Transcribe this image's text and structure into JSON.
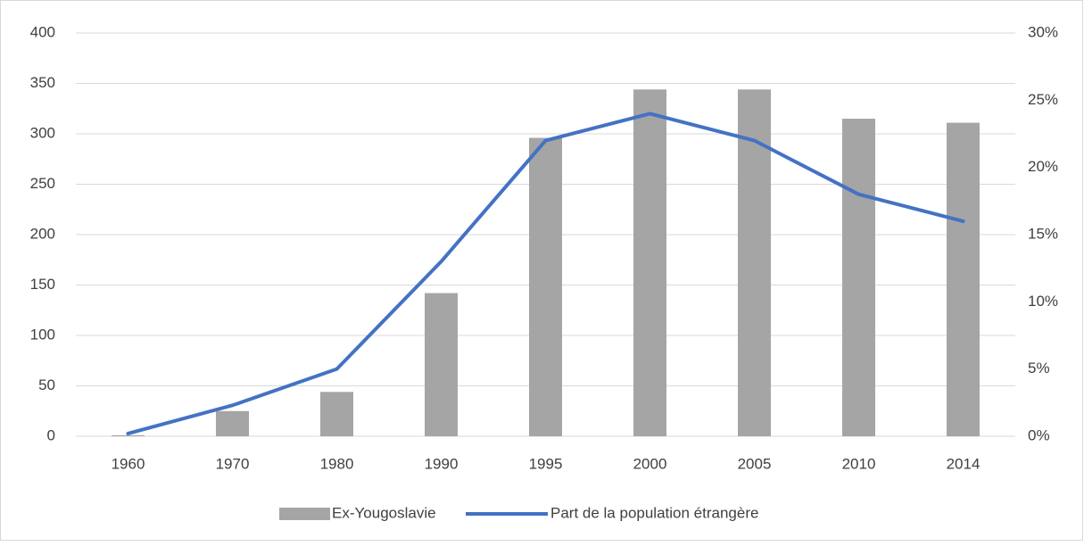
{
  "chart_data": {
    "type": "bar_line",
    "categories": [
      "1960",
      "1970",
      "1980",
      "1990",
      "1995",
      "2000",
      "2005",
      "2010",
      "2014"
    ],
    "series": [
      {
        "name": "Ex-Yougoslavie",
        "type": "bar",
        "color": "#a5a5a5",
        "values": [
          1,
          25,
          44,
          142,
          296,
          344,
          344,
          315,
          311
        ]
      },
      {
        "name": "Part de la population étrangère",
        "type": "line",
        "color": "#4472c4",
        "axis": "y2",
        "values": [
          0.2,
          2.3,
          5,
          13,
          22,
          24,
          22,
          18,
          16
        ]
      }
    ],
    "ylim": [
      0,
      400
    ],
    "yticks": [
      0,
      50,
      100,
      150,
      200,
      250,
      300,
      350,
      400
    ],
    "y2lim": [
      0,
      30
    ],
    "y2ticks": [
      {
        "value": 0,
        "label": "0%"
      },
      {
        "value": 5,
        "label": "5%"
      },
      {
        "value": 10,
        "label": "10%"
      },
      {
        "value": 15,
        "label": "15%"
      },
      {
        "value": 20,
        "label": "20%"
      },
      {
        "value": 25,
        "label": "25%"
      },
      {
        "value": 30,
        "label": "30%"
      }
    ],
    "grid": true,
    "legend": "bottom"
  }
}
